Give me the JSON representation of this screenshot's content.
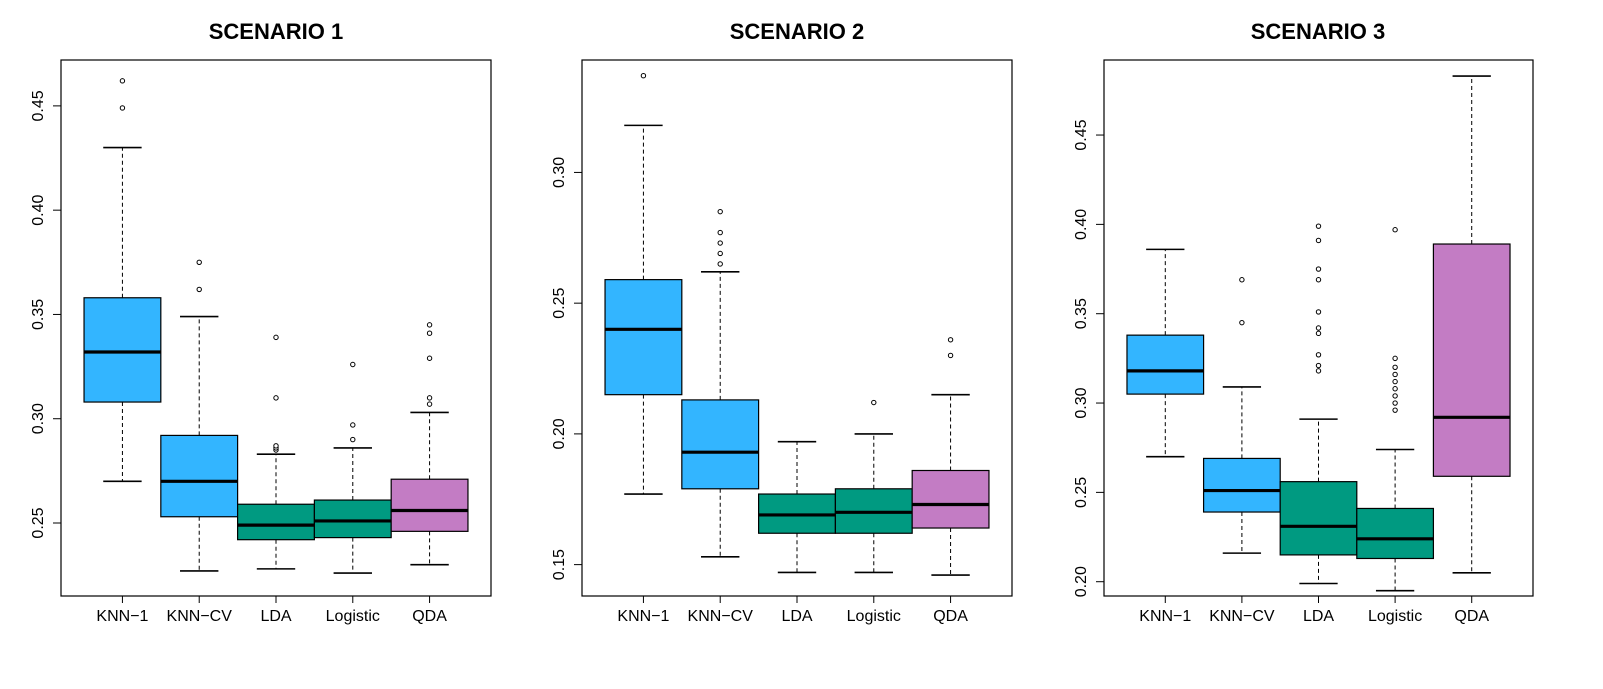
{
  "chart_data": [
    {
      "type": "boxplot",
      "title": "SCENARIO 1",
      "categories": [
        "KNN−1",
        "KNN−CV",
        "LDA",
        "Logistic",
        "QDA"
      ],
      "colors": [
        "#33b5ff",
        "#33b5ff",
        "#009a81",
        "#009a81",
        "#c37cc4"
      ],
      "ylim": [
        0.215,
        0.472
      ],
      "yticks": [
        0.25,
        0.3,
        0.35,
        0.4,
        0.45
      ],
      "ytick_labels": [
        "0.25",
        "0.30",
        "0.35",
        "0.40",
        "0.45"
      ],
      "boxes": [
        {
          "min": 0.27,
          "q1": 0.308,
          "median": 0.332,
          "q3": 0.358,
          "max": 0.43,
          "outliers": [
            0.449,
            0.462
          ]
        },
        {
          "min": 0.227,
          "q1": 0.253,
          "median": 0.27,
          "q3": 0.292,
          "max": 0.349,
          "outliers": [
            0.362,
            0.375
          ]
        },
        {
          "min": 0.228,
          "q1": 0.242,
          "median": 0.249,
          "q3": 0.259,
          "max": 0.283,
          "outliers": [
            0.285,
            0.286,
            0.287,
            0.31,
            0.339
          ]
        },
        {
          "min": 0.226,
          "q1": 0.243,
          "median": 0.251,
          "q3": 0.261,
          "max": 0.286,
          "outliers": [
            0.29,
            0.297,
            0.326
          ]
        },
        {
          "min": 0.23,
          "q1": 0.246,
          "median": 0.256,
          "q3": 0.271,
          "max": 0.303,
          "outliers": [
            0.307,
            0.31,
            0.329,
            0.341,
            0.345
          ]
        }
      ]
    },
    {
      "type": "boxplot",
      "title": "SCENARIO 2",
      "categories": [
        "KNN−1",
        "KNN−CV",
        "LDA",
        "Logistic",
        "QDA"
      ],
      "colors": [
        "#33b5ff",
        "#33b5ff",
        "#009a81",
        "#009a81",
        "#c37cc4"
      ],
      "ylim": [
        0.138,
        0.343
      ],
      "yticks": [
        0.15,
        0.2,
        0.25,
        0.3
      ],
      "ytick_labels": [
        "0.15",
        "0.20",
        "0.25",
        "0.30"
      ],
      "boxes": [
        {
          "min": 0.177,
          "q1": 0.215,
          "median": 0.24,
          "q3": 0.259,
          "max": 0.318,
          "outliers": [
            0.337
          ]
        },
        {
          "min": 0.153,
          "q1": 0.179,
          "median": 0.193,
          "q3": 0.213,
          "max": 0.262,
          "outliers": [
            0.265,
            0.269,
            0.273,
            0.277,
            0.285
          ]
        },
        {
          "min": 0.147,
          "q1": 0.162,
          "median": 0.169,
          "q3": 0.177,
          "max": 0.197,
          "outliers": []
        },
        {
          "min": 0.147,
          "q1": 0.162,
          "median": 0.17,
          "q3": 0.179,
          "max": 0.2,
          "outliers": [
            0.212
          ]
        },
        {
          "min": 0.146,
          "q1": 0.164,
          "median": 0.173,
          "q3": 0.186,
          "max": 0.215,
          "outliers": [
            0.23,
            0.236
          ]
        }
      ]
    },
    {
      "type": "boxplot",
      "title": "SCENARIO 3",
      "categories": [
        "KNN−1",
        "KNN−CV",
        "LDA",
        "Logistic",
        "QDA"
      ],
      "colors": [
        "#33b5ff",
        "#33b5ff",
        "#009a81",
        "#009a81",
        "#c37cc4"
      ],
      "ylim": [
        0.192,
        0.492
      ],
      "yticks": [
        0.2,
        0.25,
        0.3,
        0.35,
        0.4,
        0.45
      ],
      "ytick_labels": [
        "0.20",
        "0.25",
        "0.30",
        "0.35",
        "0.40",
        "0.45"
      ],
      "boxes": [
        {
          "min": 0.27,
          "q1": 0.305,
          "median": 0.318,
          "q3": 0.338,
          "max": 0.386,
          "outliers": []
        },
        {
          "min": 0.216,
          "q1": 0.239,
          "median": 0.251,
          "q3": 0.269,
          "max": 0.309,
          "outliers": [
            0.345,
            0.369
          ]
        },
        {
          "min": 0.199,
          "q1": 0.215,
          "median": 0.231,
          "q3": 0.256,
          "max": 0.291,
          "outliers": [
            0.318,
            0.321,
            0.327,
            0.339,
            0.342,
            0.351,
            0.369,
            0.375,
            0.391,
            0.399
          ]
        },
        {
          "min": 0.195,
          "q1": 0.213,
          "median": 0.224,
          "q3": 0.241,
          "max": 0.274,
          "outliers": [
            0.296,
            0.3,
            0.304,
            0.308,
            0.312,
            0.316,
            0.32,
            0.325,
            0.397
          ]
        },
        {
          "min": 0.205,
          "q1": 0.259,
          "median": 0.292,
          "q3": 0.389,
          "max": 0.483,
          "outliers": []
        }
      ]
    }
  ]
}
